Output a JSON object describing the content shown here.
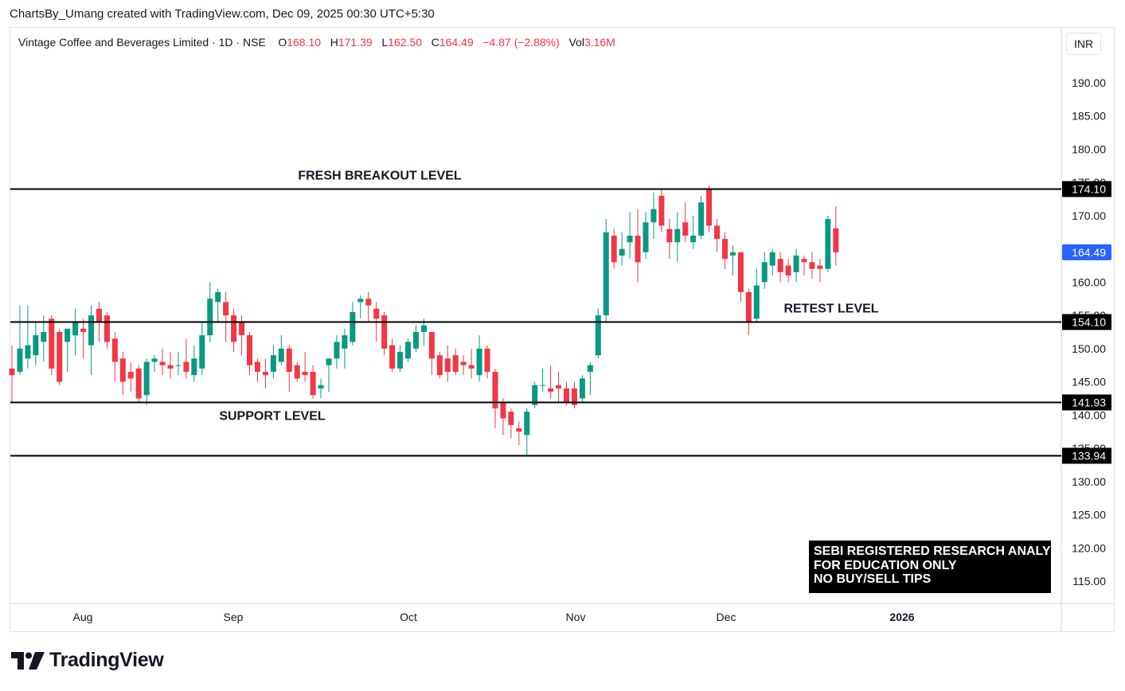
{
  "credit": "ChartsBy_Umang created with TradingView.com, Dec 09, 2025 00:30 UTC+5:30",
  "legend": {
    "title": "Vintage Coffee and Beverages Limited · 1D · NSE",
    "open_label": "O",
    "open": "168.10",
    "high_label": "H",
    "high": "171.39",
    "low_label": "L",
    "low": "162.50",
    "close_label": "C",
    "close": "164.49",
    "change": "−4.87 (−2.88%)",
    "vol_label": "Vol",
    "vol": "3.16M"
  },
  "currency": "INR",
  "brand": "TradingView",
  "disclaimer": [
    "SEBI REGISTERED RESEARCH ANALYST",
    "FOR EDUCATION ONLY",
    "NO BUY/SELL TIPS"
  ],
  "colors": {
    "up": "#089981",
    "down": "#f23645",
    "line": "#000000",
    "price_tag": "#2962ff"
  },
  "chart_data": {
    "type": "candlestick",
    "y_ticks": [
      "190.00",
      "185.00",
      "180.00",
      "175.00",
      "170.00",
      "165.00",
      "160.00",
      "155.00",
      "150.00",
      "145.00",
      "140.00",
      "135.00",
      "130.00",
      "125.00",
      "120.00",
      "115.00"
    ],
    "x_ticks": [
      "Aug",
      "Sep",
      "Oct",
      "Nov",
      "Dec",
      "2026"
    ],
    "ylim": [
      112.4,
      196.1
    ],
    "last_price": 164.49,
    "levels": [
      {
        "value": 174.1,
        "label": "174.10",
        "text": "FRESH BREAKOUT LEVEL"
      },
      {
        "value": 154.1,
        "label": "154.10",
        "text": "RETEST LEVEL"
      },
      {
        "value": 141.93,
        "label": "141.93",
        "text": "SUPPORT LEVEL"
      },
      {
        "value": 133.94,
        "label": "133.94",
        "text": ""
      }
    ],
    "candles": [
      {
        "o": 147.0,
        "h": 150.5,
        "l": 142.0,
        "c": 146.0
      },
      {
        "o": 146.5,
        "h": 156.5,
        "l": 146.0,
        "c": 150.0
      },
      {
        "o": 148.5,
        "h": 156.5,
        "l": 147.0,
        "c": 150.5
      },
      {
        "o": 149.0,
        "h": 154.0,
        "l": 147.5,
        "c": 152.0
      },
      {
        "o": 151.0,
        "h": 155.0,
        "l": 148.0,
        "c": 152.5
      },
      {
        "o": 154.5,
        "h": 155.0,
        "l": 146.0,
        "c": 147.0
      },
      {
        "o": 152.5,
        "h": 153.0,
        "l": 144.5,
        "c": 145.0
      },
      {
        "o": 151.0,
        "h": 152.5,
        "l": 146.5,
        "c": 153.0
      },
      {
        "o": 152.0,
        "h": 156.0,
        "l": 149.0,
        "c": 154.0
      },
      {
        "o": 153.0,
        "h": 154.5,
        "l": 148.5,
        "c": 152.5
      },
      {
        "o": 150.5,
        "h": 156.5,
        "l": 146.0,
        "c": 155.0
      },
      {
        "o": 156.0,
        "h": 157.0,
        "l": 151.0,
        "c": 154.0
      },
      {
        "o": 155.0,
        "h": 155.5,
        "l": 150.0,
        "c": 151.0
      },
      {
        "o": 151.5,
        "h": 152.5,
        "l": 145.0,
        "c": 148.0
      },
      {
        "o": 148.5,
        "h": 149.5,
        "l": 143.0,
        "c": 145.0
      },
      {
        "o": 146.5,
        "h": 148.0,
        "l": 143.5,
        "c": 145.5
      },
      {
        "o": 147.0,
        "h": 147.5,
        "l": 142.0,
        "c": 142.5
      },
      {
        "o": 143.0,
        "h": 148.5,
        "l": 141.5,
        "c": 148.0
      },
      {
        "o": 148.0,
        "h": 149.0,
        "l": 146.5,
        "c": 148.5
      },
      {
        "o": 148.0,
        "h": 150.0,
        "l": 146.0,
        "c": 147.5
      },
      {
        "o": 147.5,
        "h": 149.5,
        "l": 145.5,
        "c": 147.0
      },
      {
        "o": 147.5,
        "h": 149.5,
        "l": 146.0,
        "c": 147.5
      },
      {
        "o": 148.0,
        "h": 151.5,
        "l": 145.5,
        "c": 146.5
      },
      {
        "o": 146.0,
        "h": 150.5,
        "l": 145.0,
        "c": 148.5
      },
      {
        "o": 147.0,
        "h": 154.0,
        "l": 146.0,
        "c": 152.0
      },
      {
        "o": 152.0,
        "h": 160.0,
        "l": 151.0,
        "c": 157.5
      },
      {
        "o": 157.0,
        "h": 159.0,
        "l": 154.0,
        "c": 158.5
      },
      {
        "o": 157.0,
        "h": 158.5,
        "l": 151.0,
        "c": 155.0
      },
      {
        "o": 155.0,
        "h": 156.0,
        "l": 149.5,
        "c": 151.0
      },
      {
        "o": 154.0,
        "h": 155.0,
        "l": 149.0,
        "c": 152.0
      },
      {
        "o": 152.0,
        "h": 152.5,
        "l": 146.0,
        "c": 147.5
      },
      {
        "o": 148.0,
        "h": 148.5,
        "l": 145.0,
        "c": 146.5
      },
      {
        "o": 146.5,
        "h": 148.5,
        "l": 144.0,
        "c": 146.0
      },
      {
        "o": 146.5,
        "h": 150.5,
        "l": 145.5,
        "c": 149.0
      },
      {
        "o": 148.0,
        "h": 152.0,
        "l": 147.5,
        "c": 150.0
      },
      {
        "o": 150.0,
        "h": 150.5,
        "l": 143.5,
        "c": 146.5
      },
      {
        "o": 147.5,
        "h": 148.0,
        "l": 145.0,
        "c": 145.5
      },
      {
        "o": 146.5,
        "h": 149.5,
        "l": 145.0,
        "c": 146.0
      },
      {
        "o": 146.5,
        "h": 147.5,
        "l": 142.5,
        "c": 143.0
      },
      {
        "o": 144.0,
        "h": 145.5,
        "l": 142.5,
        "c": 144.5
      },
      {
        "o": 147.5,
        "h": 148.5,
        "l": 143.5,
        "c": 148.5
      },
      {
        "o": 148.5,
        "h": 152.0,
        "l": 147.0,
        "c": 151.0
      },
      {
        "o": 150.0,
        "h": 153.0,
        "l": 147.0,
        "c": 152.0
      },
      {
        "o": 151.0,
        "h": 157.0,
        "l": 150.5,
        "c": 155.5
      },
      {
        "o": 157.0,
        "h": 158.0,
        "l": 154.5,
        "c": 157.5
      },
      {
        "o": 157.5,
        "h": 158.5,
        "l": 154.0,
        "c": 156.5
      },
      {
        "o": 156.0,
        "h": 157.0,
        "l": 151.0,
        "c": 154.5
      },
      {
        "o": 155.0,
        "h": 155.5,
        "l": 149.0,
        "c": 150.0
      },
      {
        "o": 150.5,
        "h": 151.5,
        "l": 146.5,
        "c": 147.0
      },
      {
        "o": 147.0,
        "h": 150.5,
        "l": 146.5,
        "c": 149.5
      },
      {
        "o": 148.5,
        "h": 151.5,
        "l": 148.0,
        "c": 151.0
      },
      {
        "o": 150.0,
        "h": 153.5,
        "l": 149.5,
        "c": 152.5
      },
      {
        "o": 152.5,
        "h": 154.5,
        "l": 150.5,
        "c": 153.5
      },
      {
        "o": 152.5,
        "h": 152.5,
        "l": 146.0,
        "c": 148.5
      },
      {
        "o": 149.0,
        "h": 149.5,
        "l": 145.5,
        "c": 146.0
      },
      {
        "o": 148.5,
        "h": 150.5,
        "l": 145.0,
        "c": 146.5
      },
      {
        "o": 149.0,
        "h": 150.0,
        "l": 146.0,
        "c": 146.5
      },
      {
        "o": 148.0,
        "h": 149.0,
        "l": 146.0,
        "c": 147.5
      },
      {
        "o": 147.5,
        "h": 150.0,
        "l": 145.5,
        "c": 147.0
      },
      {
        "o": 146.0,
        "h": 152.0,
        "l": 145.0,
        "c": 150.0
      },
      {
        "o": 150.0,
        "h": 150.5,
        "l": 145.5,
        "c": 146.5
      },
      {
        "o": 146.5,
        "h": 147.0,
        "l": 138.0,
        "c": 141.0
      },
      {
        "o": 142.0,
        "h": 142.5,
        "l": 137.0,
        "c": 139.5
      },
      {
        "o": 140.5,
        "h": 141.0,
        "l": 136.5,
        "c": 138.5
      },
      {
        "o": 138.0,
        "h": 139.0,
        "l": 135.5,
        "c": 137.5
      },
      {
        "o": 137.0,
        "h": 141.0,
        "l": 134.0,
        "c": 140.5
      },
      {
        "o": 141.5,
        "h": 145.0,
        "l": 141.0,
        "c": 144.5
      },
      {
        "o": 144.5,
        "h": 147.0,
        "l": 143.5,
        "c": 144.5
      },
      {
        "o": 144.0,
        "h": 147.5,
        "l": 142.5,
        "c": 143.5
      },
      {
        "o": 144.5,
        "h": 146.5,
        "l": 142.0,
        "c": 144.0
      },
      {
        "o": 144.0,
        "h": 145.0,
        "l": 141.5,
        "c": 142.0
      },
      {
        "o": 144.0,
        "h": 145.0,
        "l": 141.0,
        "c": 141.5
      },
      {
        "o": 142.5,
        "h": 146.0,
        "l": 142.0,
        "c": 145.5
      },
      {
        "o": 146.5,
        "h": 148.0,
        "l": 143.0,
        "c": 147.5
      },
      {
        "o": 149.0,
        "h": 156.0,
        "l": 148.5,
        "c": 155.0
      },
      {
        "o": 155.0,
        "h": 169.5,
        "l": 154.0,
        "c": 167.5
      },
      {
        "o": 167.0,
        "h": 168.0,
        "l": 162.0,
        "c": 163.0
      },
      {
        "o": 164.0,
        "h": 167.5,
        "l": 162.5,
        "c": 165.0
      },
      {
        "o": 166.0,
        "h": 170.5,
        "l": 163.5,
        "c": 167.0
      },
      {
        "o": 167.0,
        "h": 171.0,
        "l": 160.0,
        "c": 163.0
      },
      {
        "o": 164.5,
        "h": 170.5,
        "l": 163.5,
        "c": 169.0
      },
      {
        "o": 169.0,
        "h": 173.5,
        "l": 166.5,
        "c": 171.0
      },
      {
        "o": 173.0,
        "h": 174.0,
        "l": 167.5,
        "c": 168.5
      },
      {
        "o": 168.0,
        "h": 169.5,
        "l": 163.5,
        "c": 166.0
      },
      {
        "o": 166.0,
        "h": 170.5,
        "l": 163.0,
        "c": 168.0
      },
      {
        "o": 169.0,
        "h": 172.0,
        "l": 166.0,
        "c": 167.0
      },
      {
        "o": 166.0,
        "h": 170.0,
        "l": 165.0,
        "c": 167.0
      },
      {
        "o": 167.0,
        "h": 173.0,
        "l": 166.5,
        "c": 172.0
      },
      {
        "o": 174.0,
        "h": 174.5,
        "l": 167.5,
        "c": 168.5
      },
      {
        "o": 168.5,
        "h": 169.5,
        "l": 164.5,
        "c": 166.5
      },
      {
        "o": 166.5,
        "h": 167.5,
        "l": 162.0,
        "c": 163.5
      },
      {
        "o": 164.0,
        "h": 165.5,
        "l": 161.0,
        "c": 164.5
      },
      {
        "o": 164.5,
        "h": 164.5,
        "l": 157.0,
        "c": 158.5
      },
      {
        "o": 158.5,
        "h": 159.0,
        "l": 152.0,
        "c": 154.0
      },
      {
        "o": 154.5,
        "h": 162.0,
        "l": 154.0,
        "c": 159.5
      },
      {
        "o": 160.0,
        "h": 164.5,
        "l": 159.0,
        "c": 163.0
      },
      {
        "o": 162.5,
        "h": 165.0,
        "l": 161.0,
        "c": 164.5
      },
      {
        "o": 163.5,
        "h": 164.5,
        "l": 160.0,
        "c": 161.5
      },
      {
        "o": 162.5,
        "h": 163.5,
        "l": 160.0,
        "c": 161.0
      },
      {
        "o": 161.5,
        "h": 165.0,
        "l": 160.0,
        "c": 164.0
      },
      {
        "o": 163.5,
        "h": 164.0,
        "l": 161.0,
        "c": 163.0
      },
      {
        "o": 163.0,
        "h": 164.5,
        "l": 160.5,
        "c": 162.0
      },
      {
        "o": 162.5,
        "h": 163.5,
        "l": 160.0,
        "c": 162.0
      },
      {
        "o": 162.0,
        "h": 170.0,
        "l": 161.5,
        "c": 169.5
      },
      {
        "o": 168.1,
        "h": 171.39,
        "l": 162.5,
        "c": 164.49
      }
    ]
  }
}
